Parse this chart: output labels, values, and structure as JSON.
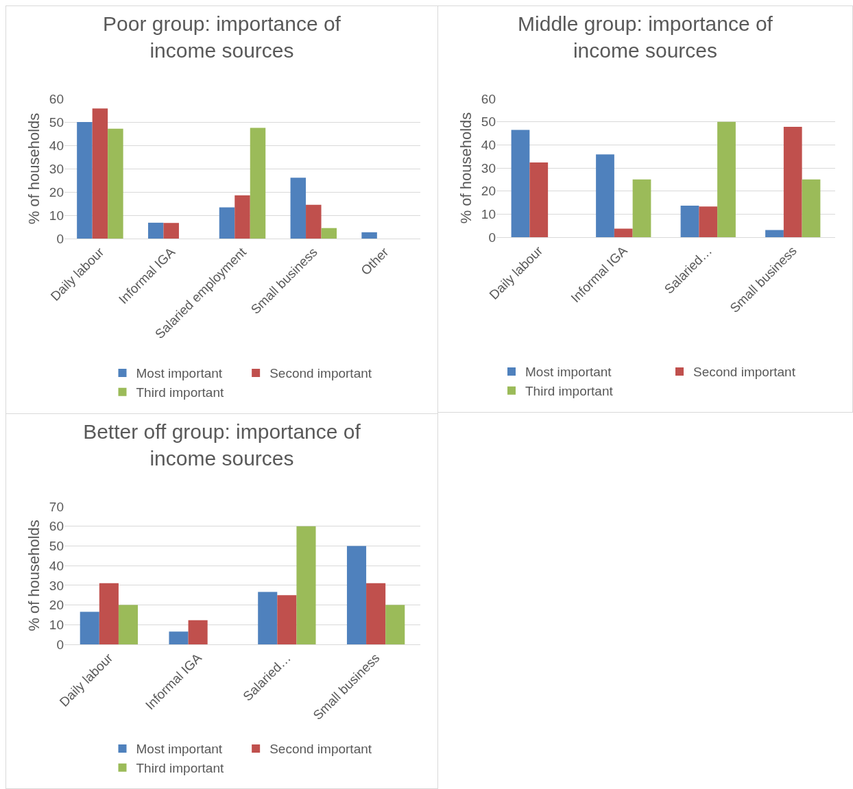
{
  "chart_data": [
    {
      "type": "bar",
      "title": "Poor group: importance of income sources",
      "ylabel": "% of households",
      "categories": [
        "Daily labour",
        "Informal IGA",
        "Salaried employment",
        "Small business",
        "Other"
      ],
      "series": [
        {
          "name": "Most important",
          "color": "#4f81bd",
          "values": [
            50,
            6.8,
            13.4,
            26.1,
            2.7
          ]
        },
        {
          "name": "Second important",
          "color": "#c0504d",
          "values": [
            55.8,
            6.7,
            18.5,
            14.5,
            null
          ]
        },
        {
          "name": "Third important",
          "color": "#9bbb59",
          "values": [
            47.1,
            null,
            47.5,
            4.5,
            null
          ]
        }
      ],
      "ylim": [
        0,
        60
      ],
      "yticks": [
        0,
        10,
        20,
        30,
        40,
        50,
        60
      ],
      "grid": "y",
      "legend": "bottom"
    },
    {
      "type": "bar",
      "title": "Middle group: importance of income sources",
      "ylabel": "% of households",
      "categories": [
        "Daily labour",
        "Informal IGA",
        "Salaried…",
        "Small business"
      ],
      "series": [
        {
          "name": "Most important",
          "color": "#4f81bd",
          "values": [
            46.5,
            35.9,
            13.7,
            3.1
          ]
        },
        {
          "name": "Second important",
          "color": "#c0504d",
          "values": [
            32.4,
            3.7,
            13.3,
            47.8
          ]
        },
        {
          "name": "Third important",
          "color": "#9bbb59",
          "values": [
            null,
            25,
            50,
            25
          ]
        }
      ],
      "ylim": [
        0,
        60
      ],
      "yticks": [
        0,
        10,
        20,
        30,
        40,
        50,
        60
      ],
      "grid": "y",
      "legend": "bottom"
    },
    {
      "type": "bar",
      "title": "Better off group: importance of income sources",
      "ylabel": "% of households",
      "categories": [
        "Daily labour",
        "Informal IGA",
        "Salaried…",
        "Small business"
      ],
      "series": [
        {
          "name": "Most important",
          "color": "#4f81bd",
          "values": [
            16.5,
            6.5,
            26.6,
            50
          ]
        },
        {
          "name": "Second important",
          "color": "#c0504d",
          "values": [
            31.1,
            12.3,
            25,
            31.1
          ]
        },
        {
          "name": "Third important",
          "color": "#9bbb59",
          "values": [
            20,
            null,
            60,
            20
          ]
        }
      ],
      "ylim": [
        0,
        70
      ],
      "yticks": [
        0,
        10,
        20,
        30,
        40,
        50,
        60,
        70
      ],
      "grid": "y",
      "legend": "bottom"
    }
  ]
}
